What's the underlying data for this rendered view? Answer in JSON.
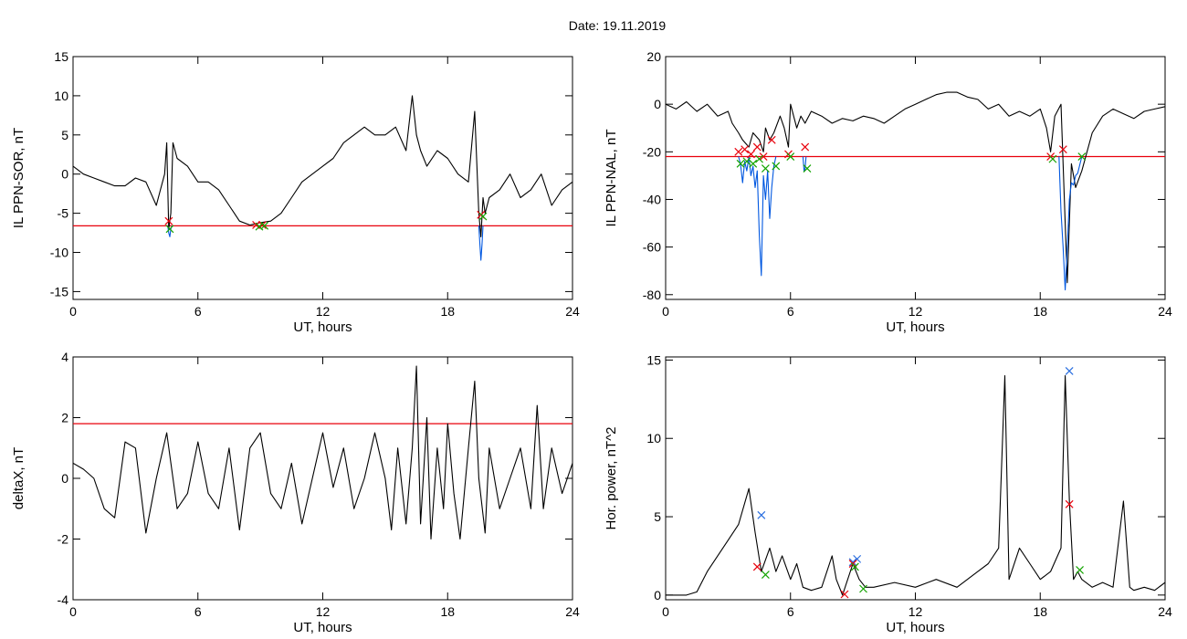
{
  "figure": {
    "title": "Date:  19.11.2019",
    "background": "#ffffff"
  },
  "chart_data": [
    {
      "id": "il-ppn-sor",
      "type": "line",
      "xlabel": "UT, hours",
      "ylabel": "IL PPN-SOR, nT",
      "xlim": [
        0,
        24
      ],
      "ylim": [
        -16,
        15
      ],
      "xticks": [
        0,
        6,
        12,
        18,
        24
      ],
      "yticks": [
        15,
        10,
        5,
        0,
        -5,
        -10,
        -15
      ],
      "threshold": {
        "value": -6.6,
        "color": "#e8000b"
      },
      "series": [
        {
          "type": "line",
          "color": "#000000",
          "x": [
            0,
            0.5,
            1,
            1.5,
            2,
            2.5,
            3,
            3.5,
            4,
            4.2,
            4.4,
            4.5,
            4.6,
            4.7,
            4.8,
            5,
            5.5,
            6,
            6.5,
            7,
            7.5,
            8,
            8.5,
            9,
            9.5,
            10,
            10.5,
            11,
            11.5,
            12,
            12.5,
            13,
            13.5,
            14,
            14.5,
            15,
            15.5,
            16,
            16.3,
            16.5,
            16.7,
            17,
            17.5,
            18,
            18.5,
            19,
            19.3,
            19.5,
            19.6,
            19.7,
            19.8,
            20,
            20.5,
            21,
            21.5,
            22,
            22.5,
            23,
            23.5,
            24
          ],
          "y": [
            1,
            0,
            -0.5,
            -1,
            -1.5,
            -1.5,
            -0.5,
            -1,
            -4,
            -2,
            0,
            4,
            -7,
            -5,
            4,
            2,
            1,
            -1,
            -1,
            -2,
            -4,
            -6,
            -6.5,
            -6.2,
            -6,
            -5,
            -3,
            -1,
            0,
            1,
            2,
            4,
            5,
            6,
            5,
            5,
            6,
            3,
            10,
            5,
            3,
            1,
            3,
            2,
            0,
            -1,
            8,
            -5,
            -8,
            -3,
            -5,
            -3,
            -2,
            0,
            -3,
            -2,
            0,
            -4,
            -2,
            -1
          ]
        },
        {
          "type": "line",
          "color": "#0057e0",
          "x": [
            4.55,
            4.6,
            4.65,
            4.7,
            4.75
          ],
          "y": [
            -6.6,
            -7.5,
            -8,
            -7,
            -6.6
          ]
        },
        {
          "type": "line",
          "color": "#0057e0",
          "x": [
            19.5,
            19.55,
            19.6,
            19.65,
            19.7
          ],
          "y": [
            -6.6,
            -9,
            -11,
            -9,
            -6.6
          ]
        }
      ],
      "markers": [
        {
          "color": "#e8000b",
          "x": [
            4.6,
            8.8,
            9.1,
            19.6
          ],
          "y": [
            -6,
            -6.5,
            -6.5,
            -5.2
          ]
        },
        {
          "color": "#13a400",
          "x": [
            4.65,
            8.95,
            9.2,
            19.7
          ],
          "y": [
            -7,
            -6.7,
            -6.6,
            -5.4
          ]
        }
      ]
    },
    {
      "id": "il-ppn-nal",
      "type": "line",
      "xlabel": "UT, hours",
      "ylabel": "IL PPN-NAL, nT",
      "xlim": [
        0,
        24
      ],
      "ylim": [
        -82,
        20
      ],
      "xticks": [
        0,
        6,
        12,
        18,
        24
      ],
      "yticks": [
        20,
        0,
        -20,
        -40,
        -60,
        -80
      ],
      "threshold": {
        "value": -22,
        "color": "#e8000b"
      },
      "series": [
        {
          "type": "line",
          "color": "#000000",
          "x": [
            0,
            0.5,
            1,
            1.5,
            2,
            2.5,
            3,
            3.2,
            3.5,
            3.7,
            4,
            4.2,
            4.5,
            4.7,
            4.8,
            5,
            5.2,
            5.5,
            5.7,
            5.9,
            6,
            6.3,
            6.5,
            6.7,
            7,
            7.5,
            8,
            8.5,
            9,
            9.5,
            10,
            10.5,
            11,
            11.5,
            12,
            12.5,
            13,
            13.5,
            14,
            14.5,
            15,
            15.5,
            16,
            16.5,
            17,
            17.5,
            18,
            18.3,
            18.5,
            18.7,
            19,
            19.1,
            19.2,
            19.3,
            19.5,
            19.7,
            20,
            20.5,
            21,
            21.5,
            22,
            22.5,
            23,
            23.5,
            24
          ],
          "y": [
            0,
            -2,
            1,
            -3,
            0,
            -5,
            -3,
            -8,
            -12,
            -15,
            -18,
            -12,
            -15,
            -20,
            -10,
            -15,
            -12,
            -5,
            -10,
            -18,
            0,
            -10,
            -5,
            -8,
            -3,
            -5,
            -8,
            -6,
            -7,
            -5,
            -6,
            -8,
            -5,
            -2,
            0,
            2,
            4,
            5,
            5,
            3,
            2,
            -2,
            0,
            -5,
            -3,
            -5,
            -2,
            -10,
            -20,
            -5,
            0,
            -25,
            -50,
            -75,
            -25,
            -35,
            -28,
            -12,
            -5,
            -2,
            -4,
            -6,
            -3,
            -2,
            -1
          ]
        },
        {
          "type": "line",
          "color": "#0057e0",
          "x": [
            3.5,
            3.6,
            3.7,
            3.8,
            3.9,
            4.0,
            4.1,
            4.2,
            4.3,
            4.4,
            4.5,
            4.6,
            4.7,
            4.8,
            4.9,
            5.0,
            5.1,
            5.2,
            5.3
          ],
          "y": [
            -22,
            -25,
            -33,
            -24,
            -28,
            -22,
            -30,
            -26,
            -35,
            -28,
            -55,
            -72,
            -30,
            -40,
            -28,
            -48,
            -35,
            -26,
            -22
          ]
        },
        {
          "type": "line",
          "color": "#0057e0",
          "x": [
            6.6,
            6.65,
            6.7,
            6.75
          ],
          "y": [
            -22,
            -28,
            -27,
            -22
          ]
        },
        {
          "type": "line",
          "color": "#0057e0",
          "x": [
            18.9,
            19.0,
            19.1,
            19.2,
            19.3,
            19.4,
            19.5,
            19.6,
            19.7,
            19.8,
            20.0
          ],
          "y": [
            -22,
            -45,
            -60,
            -78,
            -60,
            -40,
            -33,
            -34,
            -30,
            -29,
            -22
          ]
        }
      ],
      "markers": [
        {
          "color": "#e8000b",
          "x": [
            3.5,
            3.8,
            4.1,
            4.4,
            4.7,
            5.1,
            5.9,
            6.7,
            18.5,
            19.1
          ],
          "y": [
            -20,
            -19,
            -21,
            -18,
            -22,
            -15,
            -21,
            -18,
            -22,
            -19
          ]
        },
        {
          "color": "#13a400",
          "x": [
            3.6,
            3.9,
            4.2,
            4.5,
            4.8,
            5.3,
            6.0,
            6.8,
            18.6,
            20.0
          ],
          "y": [
            -25,
            -24,
            -25,
            -23,
            -27,
            -26,
            -22,
            -27,
            -23,
            -22
          ]
        }
      ]
    },
    {
      "id": "deltax",
      "type": "line",
      "xlabel": "UT, hours",
      "ylabel": "deltaX, nT",
      "xlim": [
        0,
        24
      ],
      "ylim": [
        -4,
        4
      ],
      "xticks": [
        0,
        6,
        12,
        18,
        24
      ],
      "yticks": [
        4,
        2,
        0,
        -2,
        -4
      ],
      "threshold": {
        "value": 1.8,
        "color": "#e8000b"
      },
      "series": [
        {
          "type": "line",
          "color": "#000000",
          "x": [
            0,
            0.5,
            1,
            1.5,
            2,
            2.5,
            3,
            3.5,
            4,
            4.5,
            5,
            5.5,
            6,
            6.5,
            7,
            7.5,
            8,
            8.5,
            9,
            9.5,
            10,
            10.5,
            11,
            11.5,
            12,
            12.5,
            13,
            13.5,
            14,
            14.5,
            15,
            15.3,
            15.6,
            16,
            16.3,
            16.5,
            16.7,
            17,
            17.2,
            17.5,
            17.8,
            18,
            18.3,
            18.6,
            19,
            19.3,
            19.5,
            19.8,
            20,
            20.5,
            21,
            21.5,
            22,
            22.3,
            22.6,
            23,
            23.5,
            24
          ],
          "y": [
            0.5,
            0.3,
            0,
            -1,
            -1.3,
            1.2,
            1,
            -1.8,
            0,
            1.5,
            -1,
            -0.5,
            1.2,
            -0.5,
            -1,
            1,
            -1.7,
            1,
            1.5,
            -0.5,
            -1,
            0.5,
            -1.5,
            0,
            1.5,
            -0.3,
            1,
            -1,
            0,
            1.5,
            0,
            -1.7,
            1,
            -1.5,
            1,
            3.7,
            -1.5,
            2,
            -2,
            1,
            -1,
            1.8,
            -0.5,
            -2,
            1,
            3.2,
            0,
            -1.8,
            1,
            -1,
            0,
            1,
            -1,
            2.4,
            -1,
            1,
            -0.5,
            0.5
          ]
        }
      ],
      "markers": []
    },
    {
      "id": "hor-power",
      "type": "line",
      "xlabel": "UT, hours",
      "ylabel": "Hor. power, nT^2",
      "xlim": [
        0,
        24
      ],
      "ylim": [
        -0.3,
        15.2
      ],
      "xticks": [
        0,
        6,
        12,
        18,
        24
      ],
      "yticks": [
        0,
        5,
        10,
        15
      ],
      "threshold": null,
      "series": [
        {
          "type": "line",
          "color": "#000000",
          "x": [
            0,
            1,
            1.5,
            2,
            2.5,
            3,
            3.5,
            4,
            4.3,
            4.6,
            5,
            5.3,
            5.6,
            6,
            6.3,
            6.6,
            7,
            7.5,
            8,
            8.2,
            8.5,
            9,
            9.3,
            9.6,
            10,
            11,
            12,
            13,
            14,
            15,
            15.5,
            16,
            16.3,
            16.5,
            17,
            17.5,
            18,
            18.5,
            19,
            19.2,
            19.4,
            19.6,
            19.8,
            20,
            20.5,
            21,
            21.5,
            22,
            22.3,
            22.5,
            23,
            23.5,
            24
          ],
          "y": [
            0,
            0,
            0.2,
            1.5,
            2.5,
            3.5,
            4.5,
            6.8,
            4,
            1.5,
            3,
            1.5,
            2.5,
            1,
            2,
            0.5,
            0.3,
            0.5,
            2.5,
            1,
            0,
            2,
            1,
            0.5,
            0.5,
            0.8,
            0.5,
            1,
            0.5,
            1.5,
            2,
            3,
            14,
            1,
            3,
            2,
            1,
            1.5,
            3,
            14,
            6,
            1,
            1.5,
            1,
            0.5,
            0.8,
            0.5,
            6,
            0.5,
            0.3,
            0.5,
            0.3,
            0.8
          ]
        }
      ],
      "markers": [
        {
          "color": "#2b6fe0",
          "x": [
            4.6,
            9.0,
            9.2,
            19.4
          ],
          "y": [
            5.1,
            2.1,
            2.3,
            14.3
          ]
        },
        {
          "color": "#e8000b",
          "x": [
            4.4,
            8.6,
            9.0,
            19.4
          ],
          "y": [
            1.8,
            0.05,
            2.0,
            5.8
          ]
        },
        {
          "color": "#13a400",
          "x": [
            4.8,
            9.1,
            9.5,
            19.9
          ],
          "y": [
            1.3,
            1.8,
            0.4,
            1.6
          ]
        }
      ]
    }
  ]
}
